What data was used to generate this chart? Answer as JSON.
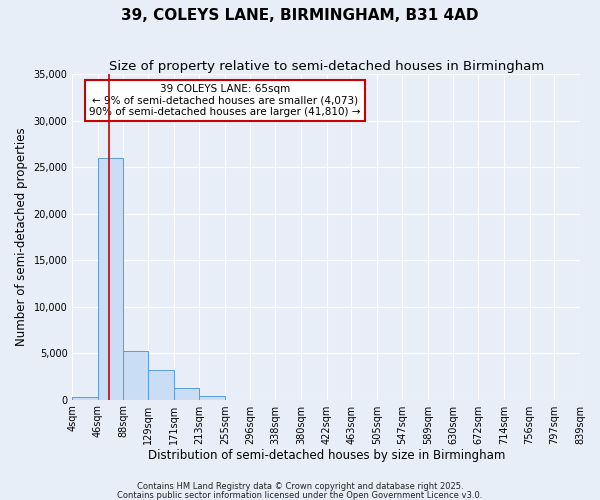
{
  "title": "39, COLEYS LANE, BIRMINGHAM, B31 4AD",
  "subtitle": "Size of property relative to semi-detached houses in Birmingham",
  "xlabel": "Distribution of semi-detached houses by size in Birmingham",
  "ylabel": "Number of semi-detached properties",
  "bin_labels": [
    "4sqm",
    "46sqm",
    "88sqm",
    "129sqm",
    "171sqm",
    "213sqm",
    "255sqm",
    "296sqm",
    "338sqm",
    "380sqm",
    "422sqm",
    "463sqm",
    "505sqm",
    "547sqm",
    "589sqm",
    "630sqm",
    "672sqm",
    "714sqm",
    "756sqm",
    "797sqm",
    "839sqm"
  ],
  "bin_edges": [
    4,
    46,
    88,
    129,
    171,
    213,
    255,
    296,
    338,
    380,
    422,
    463,
    505,
    547,
    589,
    630,
    672,
    714,
    756,
    797,
    839
  ],
  "bar_values": [
    300,
    26000,
    5200,
    3200,
    1200,
    350,
    0,
    0,
    0,
    0,
    0,
    0,
    0,
    0,
    0,
    0,
    0,
    0,
    0,
    0
  ],
  "bar_color": "#c9ddf5",
  "bar_edgecolor": "#5b9bd5",
  "vline_x": 65,
  "vline_color": "#cc0000",
  "ylim": [
    0,
    35000
  ],
  "yticks": [
    0,
    5000,
    10000,
    15000,
    20000,
    25000,
    30000,
    35000
  ],
  "annotation_title": "39 COLEYS LANE: 65sqm",
  "annotation_line1": "← 9% of semi-detached houses are smaller (4,073)",
  "annotation_line2": "90% of semi-detached houses are larger (41,810) →",
  "annotation_box_facecolor": "white",
  "annotation_box_edgecolor": "#cc0000",
  "footnote1": "Contains HM Land Registry data © Crown copyright and database right 2025.",
  "footnote2": "Contains public sector information licensed under the Open Government Licence v3.0.",
  "background_color": "#e8eef8",
  "plot_bg_color": "#e8eef8",
  "grid_color": "white",
  "title_fontsize": 11,
  "subtitle_fontsize": 9.5,
  "label_fontsize": 8.5,
  "tick_fontsize": 7,
  "footnote_fontsize": 6
}
